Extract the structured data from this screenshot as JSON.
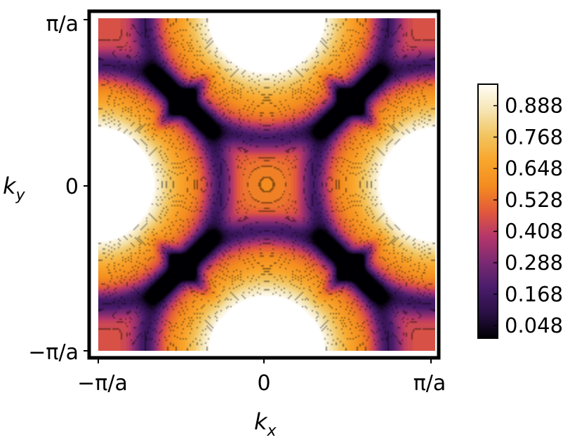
{
  "chart_data": {
    "type": "heatmap",
    "title": "",
    "xlabel": "k",
    "xlabel_sub": "x",
    "ylabel": "k",
    "ylabel_sub": "y",
    "x_ticks": [
      "−π/a",
      "0",
      "π/a"
    ],
    "y_ticks": [
      "π/a",
      "0",
      "−π/a"
    ],
    "xlim": [
      -1,
      1
    ],
    "ylim": [
      -1,
      1
    ],
    "x_units": "π/a",
    "y_units": "π/a",
    "colorbar": {
      "ticks": [
        "0.888",
        "0.768",
        "0.648",
        "0.528",
        "0.408",
        "0.288",
        "0.168",
        "0.048"
      ],
      "tick_values": [
        0.888,
        0.768,
        0.648,
        0.528,
        0.408,
        0.288,
        0.168,
        0.048
      ],
      "range": [
        0.0,
        0.97
      ],
      "colormap": [
        "#000004",
        "#2a1045",
        "#4a1c6b",
        "#7b2a72",
        "#b5366b",
        "#e35a3b",
        "#f48c1f",
        "#f9a62c",
        "#f2c561",
        "#f6e6b6",
        "#fffdf7"
      ]
    },
    "contours": "filled contour plot with dark contour lines",
    "grid": false,
    "peaks": [
      {
        "kx": 0,
        "ky": 1,
        "value": 0.97
      },
      {
        "kx": 0,
        "ky": -1,
        "value": 0.97
      },
      {
        "kx": 1,
        "ky": 0,
        "value": 0.97
      },
      {
        "kx": -1,
        "ky": 0,
        "value": 0.97
      }
    ],
    "minima_on_diagonals": [
      {
        "kx": -0.5,
        "ky": 0.5,
        "value": 0.0
      },
      {
        "kx": 0.5,
        "ky": 0.5,
        "value": 0.0
      },
      {
        "kx": -0.5,
        "ky": -0.5,
        "value": 0.0
      },
      {
        "kx": 0.5,
        "ky": -0.5,
        "value": 0.0
      }
    ],
    "center_value": {
      "kx": 0,
      "ky": 0,
      "value": 0.6
    }
  }
}
